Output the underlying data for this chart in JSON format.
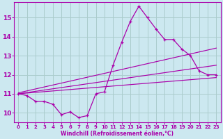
{
  "xlabel": "Windchill (Refroidissement éolien,°C)",
  "background_color": "#cce8f0",
  "grid_color": "#aacccc",
  "line_color": "#aa00aa",
  "xlim": [
    -0.5,
    23.5
  ],
  "ylim": [
    9.5,
    15.8
  ],
  "yticks": [
    10,
    11,
    12,
    13,
    14,
    15
  ],
  "xticks": [
    0,
    1,
    2,
    3,
    4,
    5,
    6,
    7,
    8,
    9,
    10,
    11,
    12,
    13,
    14,
    15,
    16,
    17,
    18,
    19,
    20,
    21,
    22,
    23
  ],
  "series": [
    {
      "x": [
        0,
        1,
        2,
        3,
        4,
        5,
        6,
        7,
        8,
        9,
        10,
        11,
        12,
        13,
        14,
        15,
        16,
        17,
        18,
        19,
        20,
        21,
        22,
        23
      ],
      "y": [
        11.0,
        10.9,
        10.6,
        10.6,
        10.45,
        9.9,
        10.05,
        9.75,
        9.85,
        11.0,
        11.1,
        12.5,
        13.7,
        14.8,
        15.6,
        15.0,
        14.4,
        13.85,
        13.85,
        13.35,
        13.0,
        12.2,
        12.0,
        12.0
      ],
      "marker": true
    },
    {
      "x": [
        0,
        23
      ],
      "y": [
        11.05,
        13.4
      ],
      "marker": false
    },
    {
      "x": [
        0,
        23
      ],
      "y": [
        11.0,
        12.5
      ],
      "marker": false
    },
    {
      "x": [
        0,
        23
      ],
      "y": [
        11.0,
        11.85
      ],
      "marker": false
    }
  ]
}
